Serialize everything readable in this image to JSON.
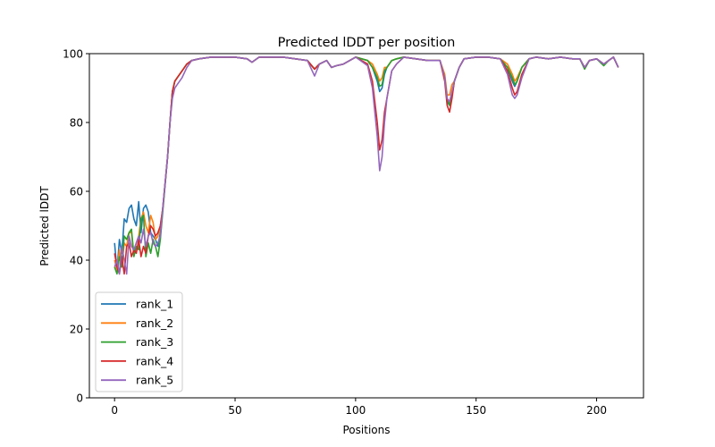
{
  "chart_data": {
    "type": "line",
    "title": "Predicted lDDT per position",
    "xlabel": "Positions",
    "ylabel": "Predicted lDDT",
    "xlim": [
      -10.45,
      219.45
    ],
    "ylim": [
      0,
      100
    ],
    "xticks": [
      0,
      50,
      100,
      150,
      200
    ],
    "yticks": [
      0,
      20,
      40,
      60,
      80,
      100
    ],
    "grid": false,
    "legend_position": "lower-left",
    "x": [
      0,
      1,
      2,
      3,
      4,
      5,
      6,
      7,
      8,
      9,
      10,
      11,
      12,
      13,
      14,
      15,
      16,
      17,
      18,
      19,
      20,
      22,
      23,
      24,
      25,
      26,
      28,
      30,
      32,
      35,
      40,
      50,
      55,
      57,
      60,
      70,
      75,
      80,
      83,
      85,
      88,
      90,
      92,
      95,
      100,
      105,
      107,
      109,
      110,
      111,
      112,
      113,
      115,
      117,
      120,
      125,
      130,
      135,
      137,
      138,
      139,
      140,
      141,
      143,
      145,
      150,
      155,
      160,
      163,
      165,
      166,
      167,
      169,
      172,
      175,
      180,
      185,
      190,
      193,
      195,
      197,
      200,
      203,
      205,
      207,
      209
    ],
    "series": [
      {
        "name": "rank_1",
        "color": "#1f77b4",
        "values": [
          45,
          37,
          46,
          42,
          52,
          51,
          55,
          56,
          52,
          50,
          57,
          48,
          55,
          56,
          54,
          48,
          47,
          46,
          44,
          48,
          55,
          70,
          80,
          89,
          92,
          93,
          95,
          97,
          98,
          98.5,
          99,
          99,
          98.5,
          97.5,
          99,
          99,
          98.5,
          98,
          95.5,
          97,
          98,
          96,
          96.5,
          97,
          99,
          98,
          96,
          92,
          89,
          90,
          94,
          96,
          98,
          98.5,
          99,
          98.5,
          98,
          98,
          93,
          86,
          85,
          88,
          92,
          96,
          98.5,
          99,
          99,
          98.5,
          96,
          92,
          90.5,
          92,
          96,
          98.5,
          99,
          98.5,
          99,
          98.5,
          98.5,
          96,
          98,
          98.5,
          97,
          98,
          99,
          96
        ]
      },
      {
        "name": "rank_2",
        "color": "#ff7f0e",
        "values": [
          40,
          37,
          43,
          38,
          45,
          44,
          48,
          48,
          42,
          45,
          47,
          52,
          54,
          50,
          48,
          53,
          51,
          46,
          47,
          50,
          55,
          70,
          80,
          89,
          92,
          93,
          95,
          97,
          98,
          98.5,
          99,
          99,
          98.5,
          97.5,
          99,
          99,
          98.5,
          98,
          95.5,
          97,
          98,
          96,
          96.5,
          97,
          99,
          98,
          97,
          94,
          92,
          93,
          96,
          96,
          98,
          98.5,
          99,
          98.5,
          98,
          98,
          94,
          88,
          88,
          91,
          92,
          96,
          98.5,
          99,
          99,
          98.5,
          97,
          94,
          92,
          93,
          96,
          98.5,
          99,
          98.5,
          99,
          98.5,
          98.5,
          96,
          98,
          98.5,
          97,
          98,
          99,
          96
        ]
      },
      {
        "name": "rank_3",
        "color": "#2ca02c",
        "values": [
          38,
          36,
          41,
          38,
          47,
          46,
          48,
          49,
          41,
          44,
          43,
          52,
          53,
          41,
          45,
          42,
          46,
          44,
          41,
          46,
          54,
          70,
          80,
          89,
          92,
          93,
          95,
          97,
          98,
          98.5,
          99,
          99,
          98.5,
          97.5,
          99,
          99,
          98.5,
          98,
          95.5,
          97,
          98,
          96,
          96.5,
          97,
          99,
          98,
          96,
          93,
          90.5,
          91,
          95,
          96,
          98,
          98.5,
          99,
          98.5,
          98,
          98,
          93,
          87,
          85,
          88,
          92,
          96,
          98.5,
          99,
          99,
          98.5,
          96,
          93,
          91,
          92,
          96,
          98.5,
          99,
          98.5,
          99,
          98.5,
          98.5,
          95.5,
          98,
          98.5,
          96.5,
          98,
          99,
          96
        ]
      },
      {
        "name": "rank_4",
        "color": "#d62728",
        "values": [
          42,
          38,
          36,
          41,
          36,
          44,
          45,
          41,
          43,
          42,
          46,
          41,
          44,
          42,
          47,
          50,
          49,
          47,
          48,
          50,
          55,
          70,
          80,
          89,
          92,
          93,
          95,
          97,
          98,
          98.5,
          99,
          99,
          98.5,
          97.5,
          99,
          99,
          98.5,
          98,
          95.5,
          97,
          98,
          96,
          96.5,
          97,
          99,
          97,
          92,
          80,
          72,
          75,
          83,
          87,
          95,
          97,
          99,
          98.5,
          98,
          98,
          92,
          85,
          83,
          87,
          92,
          96,
          98.5,
          99,
          99,
          98.5,
          95,
          90,
          88,
          89,
          94,
          98.5,
          99,
          98.5,
          99,
          98.5,
          98.5,
          96,
          98,
          98.5,
          97,
          98,
          99,
          96
        ]
      },
      {
        "name": "rank_5",
        "color": "#9467bd",
        "values": [
          38,
          40,
          36,
          44,
          40,
          36,
          47,
          44,
          43,
          45,
          47,
          45,
          49,
          44,
          47,
          48,
          45,
          44,
          45,
          47,
          55,
          70,
          80,
          87,
          90,
          91,
          93,
          96,
          98,
          98.5,
          99,
          99,
          98.5,
          97.5,
          99,
          99,
          98.5,
          98,
          93.5,
          97,
          98,
          96,
          96.5,
          97,
          99,
          96.5,
          90,
          76,
          66,
          70,
          80,
          87,
          95,
          97,
          99,
          98.5,
          98,
          98,
          93,
          87,
          86,
          89,
          92,
          96,
          98.5,
          99,
          99,
          98.5,
          94,
          88,
          87,
          88,
          93,
          98.5,
          99,
          98.5,
          99,
          98.5,
          98.5,
          96,
          98,
          98.5,
          97,
          98,
          99,
          96
        ]
      }
    ]
  }
}
